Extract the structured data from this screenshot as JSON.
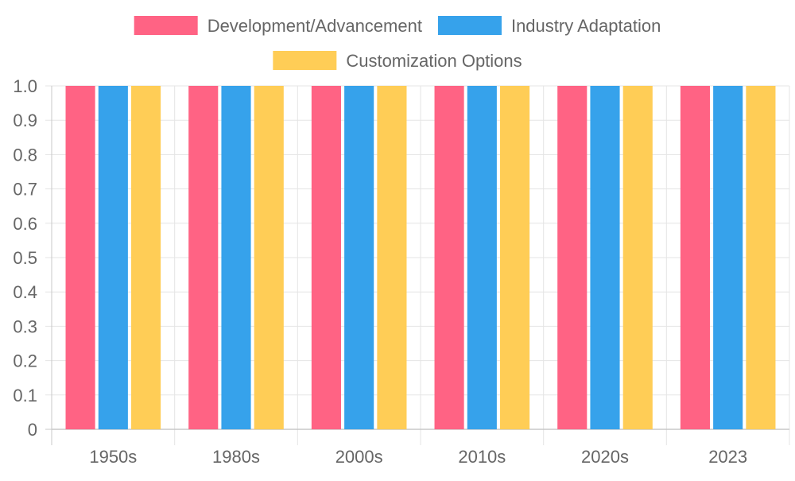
{
  "chart_data": {
    "type": "bar",
    "categories": [
      "1950s",
      "1980s",
      "2000s",
      "2010s",
      "2020s",
      "2023"
    ],
    "series": [
      {
        "name": "Development/Advancement",
        "color": "#ff6384",
        "values": [
          1,
          1,
          1,
          1,
          1,
          1
        ]
      },
      {
        "name": "Industry Adaptation",
        "color": "#36a2eb",
        "values": [
          1,
          1,
          1,
          1,
          1,
          1
        ]
      },
      {
        "name": "Customization Options",
        "color": "#ffcd56",
        "values": [
          1,
          1,
          1,
          1,
          1,
          1
        ]
      }
    ],
    "title": "",
    "xlabel": "",
    "ylabel": "",
    "ylim": [
      0,
      1
    ],
    "yticks": [
      "0",
      "0.1",
      "0.2",
      "0.3",
      "0.4",
      "0.5",
      "0.6",
      "0.7",
      "0.8",
      "0.9",
      "1.0"
    ],
    "grid": true,
    "legend_position": "top"
  }
}
